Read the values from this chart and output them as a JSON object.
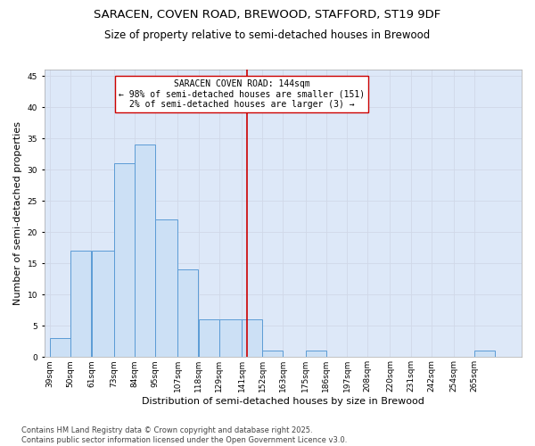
{
  "title1": "SARACEN, COVEN ROAD, BREWOOD, STAFFORD, ST19 9DF",
  "title2": "Size of property relative to semi-detached houses in Brewood",
  "xlabel": "Distribution of semi-detached houses by size in Brewood",
  "ylabel": "Number of semi-detached properties",
  "bin_labels": [
    "39sqm",
    "50sqm",
    "61sqm",
    "73sqm",
    "84sqm",
    "95sqm",
    "107sqm",
    "118sqm",
    "129sqm",
    "141sqm",
    "152sqm",
    "163sqm",
    "175sqm",
    "186sqm",
    "197sqm",
    "208sqm",
    "220sqm",
    "231sqm",
    "242sqm",
    "254sqm",
    "265sqm"
  ],
  "bin_edges": [
    39,
    50,
    61,
    73,
    84,
    95,
    107,
    118,
    129,
    141,
    152,
    163,
    175,
    186,
    197,
    208,
    220,
    231,
    242,
    254,
    265,
    276
  ],
  "heights": [
    3,
    17,
    17,
    31,
    34,
    22,
    14,
    6,
    6,
    6,
    1,
    0,
    1,
    0,
    0,
    0,
    0,
    0,
    0,
    0,
    1
  ],
  "bar_facecolor": "#cce0f5",
  "bar_edgecolor": "#5b9bd5",
  "vline_x": 144,
  "vline_color": "#cc0000",
  "annotation_line1": "SARACEN COVEN ROAD: 144sqm",
  "annotation_line2": "← 98% of semi-detached houses are smaller (151)",
  "annotation_line3": "2% of semi-detached houses are larger (3) →",
  "annotation_box_edgecolor": "#cc0000",
  "annotation_box_facecolor": "#ffffff",
  "ylim": [
    0,
    46
  ],
  "yticks": [
    0,
    5,
    10,
    15,
    20,
    25,
    30,
    35,
    40,
    45
  ],
  "grid_color": "#d0d8e8",
  "background_color": "#dde8f8",
  "footer_text": "Contains HM Land Registry data © Crown copyright and database right 2025.\nContains public sector information licensed under the Open Government Licence v3.0.",
  "title1_fontsize": 9.5,
  "title2_fontsize": 8.5,
  "xlabel_fontsize": 8,
  "ylabel_fontsize": 8,
  "tick_fontsize": 6.5,
  "annotation_fontsize": 7,
  "footer_fontsize": 6
}
